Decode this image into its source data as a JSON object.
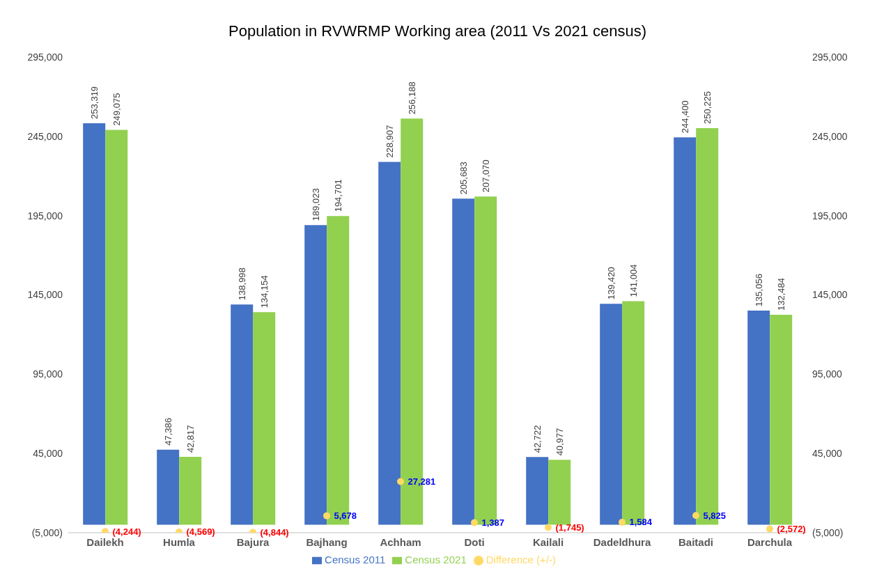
{
  "chart_data": {
    "type": "bar",
    "title": "Population in RVWRMP Working area (2011 Vs 2021 census)",
    "categories": [
      "Dailekh",
      "Humla",
      "Bajura",
      "Bajhang",
      "Achham",
      "Doti",
      "Kailali",
      "Dadeldhura",
      "Baitadi",
      "Darchula"
    ],
    "series": [
      {
        "name": "Census 2011",
        "color": "#4472c4",
        "values": [
          253319,
          47386,
          138998,
          189023,
          228907,
          205683,
          42722,
          139420,
          244400,
          135056
        ],
        "value_labels": [
          "253,319",
          "47,386",
          "138,998",
          "189,023",
          "228,907",
          "205,683",
          "42,722",
          "139,420",
          "244,400",
          "135,056"
        ]
      },
      {
        "name": "Census 2021",
        "color": "#92d050",
        "values": [
          249075,
          42817,
          134154,
          194701,
          256188,
          207070,
          40977,
          141004,
          250225,
          132484
        ],
        "value_labels": [
          "249,075",
          "42,817",
          "134,154",
          "194,701",
          "256,188",
          "207,070",
          "40,977",
          "141,004",
          "250,225",
          "132,484"
        ]
      },
      {
        "name": "Difference (+/-)",
        "type": "scatter",
        "axis": "y2",
        "color": "#ffd966",
        "marker": "circle",
        "values": [
          -4244,
          -4569,
          -4844,
          5678,
          27281,
          1387,
          -1745,
          1584,
          5825,
          -2572
        ],
        "value_labels": [
          "(4,244)",
          "(4,569)",
          "(4,844)",
          "5,678",
          "27,281",
          "1,387",
          "(1,745)",
          "1,584",
          "5,825",
          "(2,572)"
        ]
      }
    ],
    "ylim": [
      -5000,
      295000
    ],
    "yticks": [
      {
        "value": -5000,
        "label": "(5,000)"
      },
      {
        "value": 45000,
        "label": "45,000"
      },
      {
        "value": 95000,
        "label": "95,000"
      },
      {
        "value": 145000,
        "label": "145,000"
      },
      {
        "value": 195000,
        "label": "195,000"
      },
      {
        "value": 245000,
        "label": "245,000"
      },
      {
        "value": 295000,
        "label": "295,000"
      }
    ],
    "y2lim": [
      -5000,
      295000
    ],
    "y2ticks": [
      {
        "value": -5000,
        "label": "(5,000)"
      },
      {
        "value": 45000,
        "label": "45,000"
      },
      {
        "value": 95000,
        "label": "95,000"
      },
      {
        "value": 145000,
        "label": "145,000"
      },
      {
        "value": 195000,
        "label": "195,000"
      },
      {
        "value": 245000,
        "label": "245,000"
      },
      {
        "value": 295000,
        "label": "295,000"
      }
    ],
    "grid": false,
    "legend": "bottom"
  }
}
